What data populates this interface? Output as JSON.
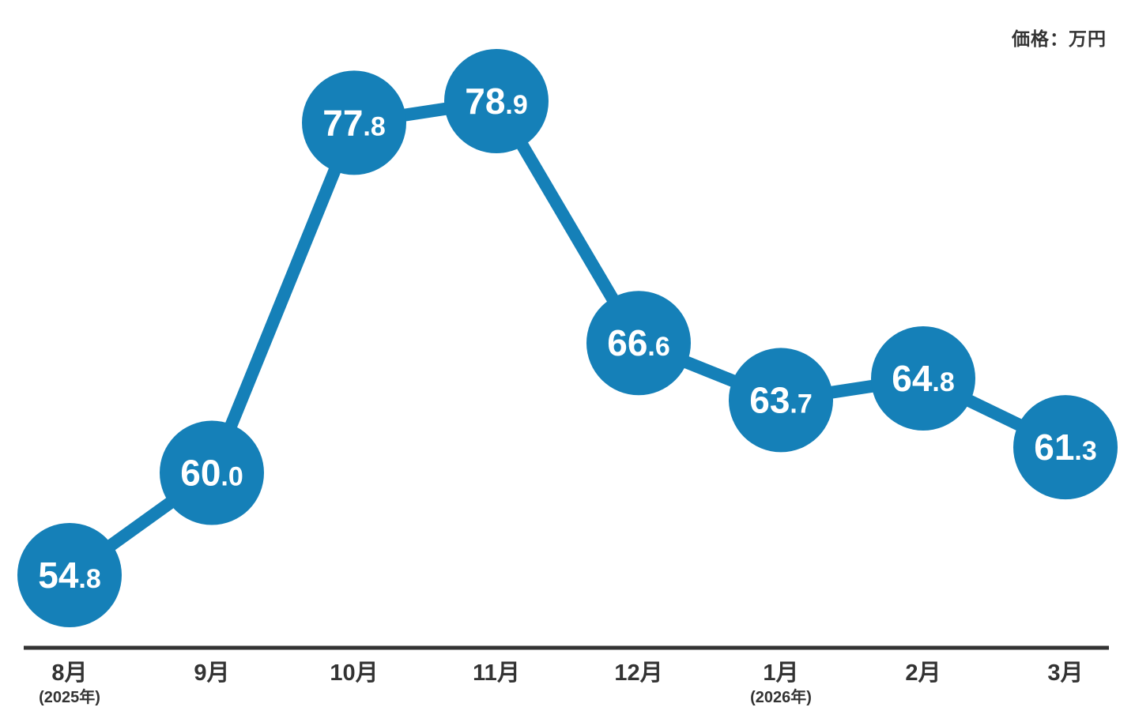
{
  "unit_label": "価格：万円",
  "chart_data": {
    "type": "line",
    "title": "",
    "unit_label": "価格：万円",
    "categories": [
      "8月",
      "9月",
      "10月",
      "11月",
      "12月",
      "1月",
      "2月",
      "3月"
    ],
    "category_sublabels": [
      "(2025年)",
      "",
      "",
      "",
      "",
      "(2026年)",
      "",
      ""
    ],
    "values": [
      54.8,
      60.0,
      77.8,
      78.9,
      66.6,
      63.7,
      64.8,
      61.3
    ],
    "value_labels": [
      "54.8",
      "60.0",
      "77.8",
      "78.9",
      "66.6",
      "63.7",
      "64.8",
      "61.3"
    ],
    "ylim": [
      54.8,
      78.9
    ],
    "grid": false,
    "y_axis_visible": false,
    "legend": "none",
    "colors": {
      "line": "#1580B8",
      "point": "#1580B8",
      "value_text": "#FFFFFF",
      "axis": "#333333"
    }
  }
}
